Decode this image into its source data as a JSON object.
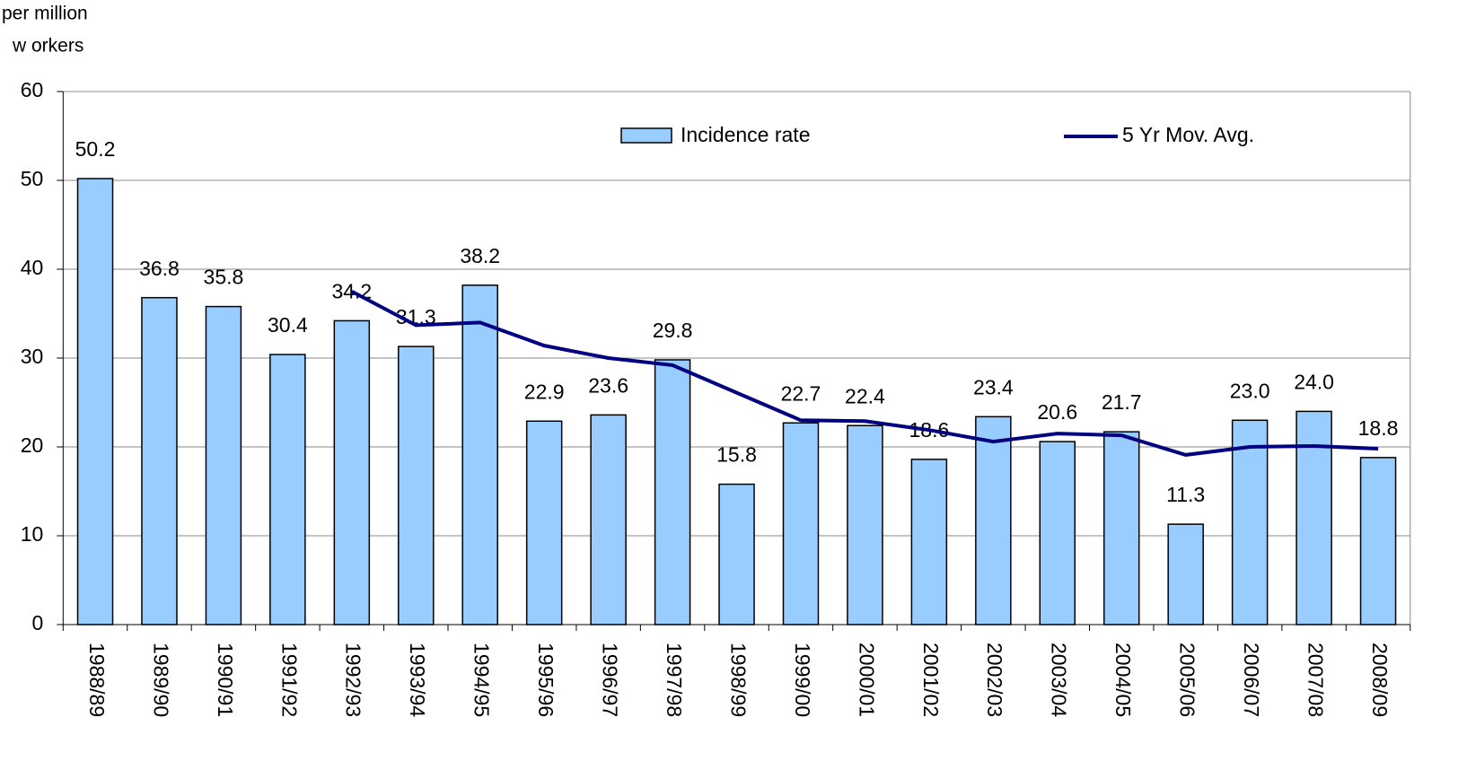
{
  "chart_data": {
    "type": "bar",
    "y_label_lines": [
      "per million",
      "w orkers"
    ],
    "categories": [
      "1988/89",
      "1989/90",
      "1990/91",
      "1991/92",
      "1992/93",
      "1993/94",
      "1994/95",
      "1995/96",
      "1996/97",
      "1997/98",
      "1998/99",
      "1999/00",
      "2000/01",
      "2001/02",
      "2002/03",
      "2003/04",
      "2004/05",
      "2005/06",
      "2006/07",
      "2007/08",
      "2008/09"
    ],
    "series": [
      {
        "name": "Incidence rate",
        "type": "bar",
        "color": "#99ccff",
        "values": [
          50.2,
          36.8,
          35.8,
          30.4,
          34.2,
          31.3,
          38.2,
          22.9,
          23.6,
          29.8,
          15.8,
          22.7,
          22.4,
          18.6,
          23.4,
          20.6,
          21.7,
          11.3,
          23.0,
          24.0,
          18.8
        ],
        "value_labels": [
          "50.2",
          "36.8",
          "35.8",
          "30.4",
          "34.2",
          "31.3",
          "38.2",
          "22.9",
          "23.6",
          "29.8",
          "15.8",
          "22.7",
          "22.4",
          "18.6",
          "23.4",
          "20.6",
          "21.7",
          "11.3",
          "23.0",
          "24.0",
          "18.8"
        ]
      },
      {
        "name": "5 Yr Mov. Avg.",
        "type": "line",
        "color": "#000080",
        "values": [
          null,
          null,
          null,
          null,
          37.5,
          33.7,
          34.0,
          31.4,
          30.0,
          29.2,
          26.1,
          23.0,
          22.9,
          21.9,
          20.6,
          21.5,
          21.3,
          19.1,
          20.0,
          20.1,
          19.8
        ]
      }
    ],
    "ylim": [
      0,
      60
    ],
    "yticks": [
      0,
      10,
      20,
      30,
      40,
      50,
      60
    ],
    "grid": true
  }
}
